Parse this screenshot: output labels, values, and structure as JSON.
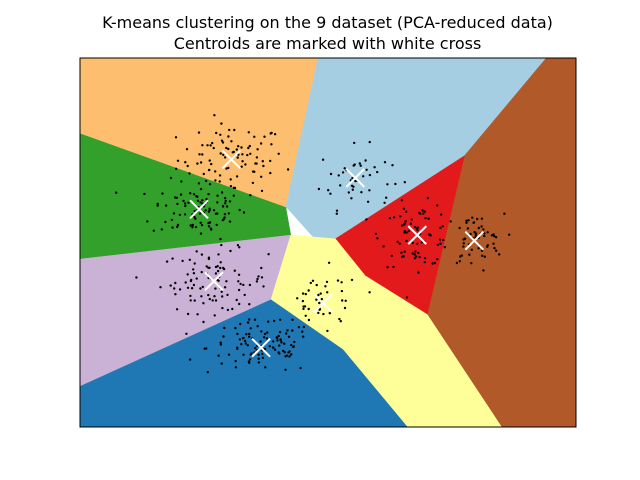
{
  "chart_data": {
    "type": "scatter",
    "title": "K-means clustering on the 9 dataset (PCA-reduced data)",
    "subtitle": "Centroids are marked with white cross",
    "xlabel": "",
    "ylabel": "",
    "xlim": [
      0,
      100
    ],
    "ylim": [
      0,
      100
    ],
    "show_ticks": false,
    "grid": false,
    "colors": {
      "background": "#ffffff",
      "axes_edge": "#000000",
      "points": "#000000",
      "centroid": "#ffffff"
    },
    "regions": [
      {
        "name": "orange",
        "color": "#fdbf6f",
        "polygon": [
          [
            0,
            100
          ],
          [
            48,
            100
          ],
          [
            41.5,
            59.5
          ],
          [
            0,
            79.5
          ]
        ]
      },
      {
        "name": "light-blue",
        "color": "#a6cee3",
        "polygon": [
          [
            48,
            100
          ],
          [
            94,
            100
          ],
          [
            77.5,
            73.5
          ],
          [
            51.5,
            51
          ],
          [
            47,
            51.5
          ],
          [
            42,
            59
          ],
          [
            41.5,
            59.5
          ]
        ]
      },
      {
        "name": "brown",
        "color": "#b15928",
        "polygon": [
          [
            94,
            100
          ],
          [
            100,
            100
          ],
          [
            100,
            0
          ],
          [
            85,
            0
          ],
          [
            70,
            30.5
          ],
          [
            77.5,
            73.5
          ]
        ]
      },
      {
        "name": "red",
        "color": "#e31a1c",
        "polygon": [
          [
            77.5,
            73.5
          ],
          [
            70,
            30.5
          ],
          [
            57.5,
            41
          ],
          [
            51.5,
            51
          ]
        ]
      },
      {
        "name": "green",
        "color": "#33a02c",
        "polygon": [
          [
            0,
            79.5
          ],
          [
            41.5,
            59.5
          ],
          [
            42.5,
            52
          ],
          [
            0,
            45.5
          ]
        ]
      },
      {
        "name": "lavender",
        "color": "#cab2d6",
        "polygon": [
          [
            0,
            45.5
          ],
          [
            42.5,
            52
          ],
          [
            38.5,
            34.5
          ],
          [
            0,
            11
          ]
        ]
      },
      {
        "name": "pale-yellow",
        "color": "#ffff99",
        "polygon": [
          [
            42.5,
            52
          ],
          [
            47,
            51.5
          ],
          [
            51.5,
            51
          ],
          [
            57.5,
            41
          ],
          [
            70,
            30.5
          ],
          [
            85,
            0
          ],
          [
            66,
            0
          ],
          [
            53,
            21
          ],
          [
            38.5,
            34.5
          ]
        ]
      },
      {
        "name": "blue",
        "color": "#1f78b4",
        "polygon": [
          [
            0,
            11
          ],
          [
            38.5,
            34.5
          ],
          [
            53,
            21
          ],
          [
            66,
            0
          ],
          [
            0,
            0
          ]
        ]
      }
    ],
    "clusters": [
      {
        "centroid": [
          30.5,
          72.5
        ],
        "spread": [
          9,
          8
        ],
        "count": 90
      },
      {
        "centroid": [
          24,
          59
        ],
        "spread": [
          8,
          6.5
        ],
        "count": 90
      },
      {
        "centroid": [
          55.5,
          67.5
        ],
        "spread": [
          6,
          7
        ],
        "count": 45
      },
      {
        "centroid": [
          27,
          39.5
        ],
        "spread": [
          9,
          7
        ],
        "count": 95
      },
      {
        "centroid": [
          36.5,
          21.5
        ],
        "spread": [
          9,
          6
        ],
        "count": 100
      },
      {
        "centroid": [
          49,
          33.5
        ],
        "spread": [
          6.5,
          7.5
        ],
        "count": 45
      },
      {
        "centroid": [
          68,
          52
        ],
        "spread": [
          6,
          7
        ],
        "count": 75
      },
      {
        "centroid": [
          79.5,
          50.5
        ],
        "spread": [
          5,
          6
        ],
        "count": 55
      }
    ]
  }
}
